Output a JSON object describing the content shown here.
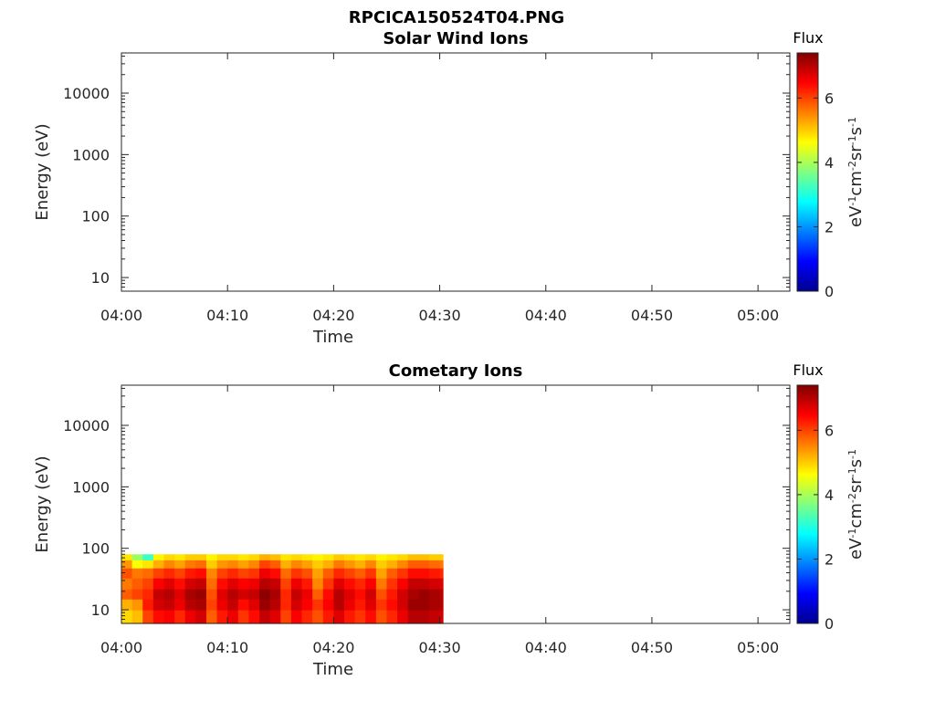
{
  "figure_title": "RPCICA150524T04.PNG",
  "colors": {
    "colormap": [
      "#00008f",
      "#0000ff",
      "#0080ff",
      "#00ffff",
      "#80ff80",
      "#ffff00",
      "#ff8000",
      "#ff0000",
      "#800000"
    ],
    "axis": "#262626"
  },
  "chart_data": [
    {
      "type": "heatmap",
      "title": "Solar Wind Ions",
      "xlabel": "Time",
      "ylabel": "Energy (eV)",
      "yscale": "log",
      "ylim": [
        6,
        45000
      ],
      "xlim": [
        "04:00",
        "05:03"
      ],
      "x_ticks": [
        "04:00",
        "04:10",
        "04:20",
        "04:30",
        "04:40",
        "04:50",
        "05:00"
      ],
      "y_ticks": [
        "10",
        "100",
        "1000",
        "10000"
      ],
      "colorbar": {
        "label": "Flux",
        "unit": "eV-1cm-2sr-1s-1",
        "range": [
          0,
          7.4
        ],
        "ticks": [
          "0",
          "2",
          "4",
          "6"
        ]
      },
      "columns": []
    },
    {
      "type": "heatmap",
      "title": "Cometary Ions",
      "xlabel": "Time",
      "ylabel": "Energy (eV)",
      "yscale": "log",
      "ylim": [
        6,
        45000
      ],
      "xlim": [
        "04:00",
        "05:03"
      ],
      "x_ticks": [
        "04:00",
        "04:10",
        "04:20",
        "04:30",
        "04:40",
        "04:50",
        "05:00"
      ],
      "y_ticks": [
        "10",
        "100",
        "1000",
        "10000"
      ],
      "colorbar": {
        "label": "Flux",
        "unit": "eV-1cm-2sr-1s-1",
        "range": [
          0,
          7.4
        ],
        "ticks": [
          "0",
          "2",
          "4",
          "6"
        ]
      },
      "energy_bands": [
        6,
        10,
        15,
        22,
        33,
        48,
        65,
        80
      ],
      "columns": [
        {
          "t0": "04:00",
          "t1": "04:01",
          "flux": [
            4.9,
            5.2,
            5.8,
            5.6,
            5.9,
            5.4,
            4.8
          ]
        },
        {
          "t0": "04:01",
          "t1": "04:02",
          "flux": [
            5.1,
            5.4,
            6.0,
            5.8,
            5.6,
            4.6,
            3.9
          ]
        },
        {
          "t0": "04:02",
          "t1": "04:03",
          "flux": [
            6.0,
            6.3,
            6.2,
            6.0,
            5.7,
            4.8,
            3.2
          ]
        },
        {
          "t0": "04:03",
          "t1": "04:04",
          "flux": [
            6.4,
            6.8,
            6.9,
            6.5,
            6.0,
            5.2,
            4.7
          ]
        },
        {
          "t0": "04:04",
          "t1": "04:05",
          "flux": [
            6.5,
            6.9,
            7.0,
            6.7,
            6.2,
            5.5,
            4.9
          ]
        },
        {
          "t0": "04:05",
          "t1": "04:06",
          "flux": [
            6.2,
            6.6,
            6.7,
            6.4,
            6.0,
            5.3,
            4.8
          ]
        },
        {
          "t0": "04:06",
          "t1": "04:07",
          "flux": [
            6.6,
            7.0,
            7.1,
            6.8,
            6.3,
            5.6,
            5.0
          ]
        },
        {
          "t0": "04:07",
          "t1": "04:08",
          "flux": [
            6.8,
            7.1,
            7.2,
            6.9,
            6.4,
            5.7,
            5.0
          ]
        },
        {
          "t0": "04:08",
          "t1": "04:09",
          "flux": [
            5.8,
            6.0,
            5.9,
            5.7,
            5.5,
            5.0,
            4.7
          ]
        },
        {
          "t0": "04:09",
          "t1": "04:10",
          "flux": [
            6.3,
            6.6,
            6.7,
            6.4,
            6.0,
            5.4,
            4.9
          ]
        },
        {
          "t0": "04:10",
          "t1": "04:11",
          "flux": [
            6.6,
            6.9,
            7.0,
            6.7,
            6.2,
            5.5,
            4.9
          ]
        },
        {
          "t0": "04:11",
          "t1": "04:12",
          "flux": [
            6.1,
            6.4,
            6.8,
            6.5,
            6.0,
            5.3,
            4.8
          ]
        },
        {
          "t0": "04:12",
          "t1": "04:13",
          "flux": [
            6.4,
            6.7,
            6.9,
            6.6,
            6.1,
            5.5,
            4.9
          ]
        },
        {
          "t0": "04:13",
          "t1": "04:14",
          "flux": [
            6.9,
            7.2,
            7.3,
            7.0,
            6.6,
            6.0,
            5.2
          ]
        },
        {
          "t0": "04:14",
          "t1": "04:15",
          "flux": [
            6.7,
            7.0,
            7.1,
            6.9,
            6.4,
            5.8,
            5.1
          ]
        },
        {
          "t0": "04:15",
          "t1": "04:16",
          "flux": [
            6.0,
            6.2,
            6.2,
            6.0,
            5.7,
            5.2,
            4.8
          ]
        },
        {
          "t0": "04:16",
          "t1": "04:17",
          "flux": [
            6.5,
            6.8,
            6.9,
            6.6,
            6.1,
            5.5,
            4.9
          ]
        },
        {
          "t0": "04:17",
          "t1": "04:18",
          "flux": [
            6.2,
            6.5,
            6.6,
            6.3,
            5.9,
            5.3,
            4.8
          ]
        },
        {
          "t0": "04:18",
          "t1": "04:19",
          "flux": [
            5.9,
            6.1,
            5.8,
            5.5,
            5.3,
            5.0,
            4.7
          ]
        },
        {
          "t0": "04:19",
          "t1": "04:20",
          "flux": [
            6.3,
            6.5,
            6.4,
            6.1,
            5.8,
            5.2,
            4.8
          ]
        },
        {
          "t0": "04:20",
          "t1": "04:21",
          "flux": [
            6.7,
            7.0,
            7.0,
            6.7,
            6.2,
            5.6,
            5.0
          ]
        },
        {
          "t0": "04:21",
          "t1": "04:22",
          "flux": [
            6.3,
            6.6,
            6.7,
            6.4,
            6.0,
            5.4,
            4.9
          ]
        },
        {
          "t0": "04:22",
          "t1": "04:23",
          "flux": [
            6.1,
            6.3,
            6.4,
            6.2,
            5.8,
            5.2,
            4.8
          ]
        },
        {
          "t0": "04:23",
          "t1": "04:24",
          "flux": [
            6.4,
            6.7,
            6.8,
            6.5,
            6.1,
            5.5,
            4.9
          ]
        },
        {
          "t0": "04:24",
          "t1": "04:25",
          "flux": [
            5.9,
            6.1,
            5.9,
            5.6,
            5.3,
            5.0,
            4.7
          ]
        },
        {
          "t0": "04:25",
          "t1": "04:26",
          "flux": [
            6.2,
            6.4,
            6.3,
            6.1,
            5.8,
            5.2,
            4.8
          ]
        },
        {
          "t0": "04:26",
          "t1": "04:27",
          "flux": [
            6.6,
            6.8,
            6.8,
            6.5,
            6.1,
            5.5,
            4.9
          ]
        },
        {
          "t0": "04:27",
          "t1": "04:28",
          "flux": [
            7.0,
            7.2,
            7.1,
            6.9,
            6.4,
            5.8,
            5.1
          ]
        },
        {
          "t0": "04:28",
          "t1": "04:29",
          "flux": [
            7.0,
            7.2,
            7.2,
            6.9,
            6.4,
            5.8,
            5.1
          ]
        },
        {
          "t0": "04:29",
          "t1": "04:30",
          "flux": [
            6.9,
            7.1,
            7.1,
            6.8,
            6.3,
            5.7,
            5.0
          ]
        },
        {
          "t0": "04:30",
          "t1": "04:30:18",
          "flux": [
            6.8,
            7.0,
            7.0,
            6.7,
            6.2,
            5.6,
            5.0
          ]
        }
      ]
    }
  ]
}
